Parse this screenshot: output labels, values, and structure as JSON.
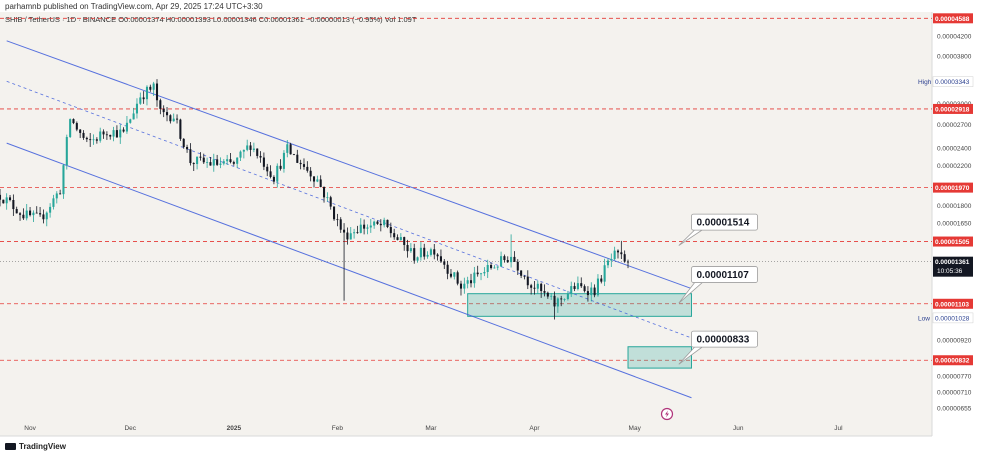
{
  "header": {
    "published": "parhamnb published on TradingView.com, Apr 29, 2025 17:24 UTC+3:30"
  },
  "footer": {
    "brand": "TradingView"
  },
  "colors": {
    "up": "#26a69a",
    "down": "#131722",
    "channel": "#3b5bdb",
    "level": "#e53935",
    "zone": "#26a69a",
    "pane": "#f4f2ee"
  },
  "chart_data": {
    "type": "candlestick",
    "legend": "SHIB / TetherUS · 1D · BINANCE  O0.00001374  H0.00001393  L0.00001346  C0.00001361  −0.00000013 (−0.95%)  Vol 1.09T",
    "symbol": "SHIB / TetherUS",
    "interval": "1D",
    "exchange": "BINANCE",
    "ohlc": {
      "open": 1.374e-05,
      "high": 1.393e-05,
      "low": 1.346e-05,
      "close": 1.361e-05,
      "change": "−0.00000013 (−0.95%)",
      "volume": "1.09T"
    },
    "x_start": "2024-10-23",
    "x_end": "2025-07-29",
    "y_range": [
      6.3e-06,
      5e-06
    ],
    "y_scale": "log",
    "y_ticks": [
      "0.00004200",
      "0.00003800",
      "0.00003000",
      "0.00002700",
      "0.00002400",
      "0.00002200",
      "0.00001800",
      "0.00001650",
      "0.00000920",
      "0.00000770",
      "0.00000710",
      "0.00000655"
    ],
    "x_ticks": [
      {
        "label": "Nov",
        "date": "2024-11-01"
      },
      {
        "label": "Dec",
        "date": "2024-12-01"
      },
      {
        "label": "2025",
        "date": "2025-01-01"
      },
      {
        "label": "Feb",
        "date": "2025-02-01"
      },
      {
        "label": "Mar",
        "date": "2025-03-01"
      },
      {
        "label": "Apr",
        "date": "2025-04-01"
      },
      {
        "label": "May",
        "date": "2025-05-01"
      },
      {
        "label": "Jun",
        "date": "2025-06-01"
      },
      {
        "label": "Jul",
        "date": "2025-07-01"
      }
    ],
    "horizontal_levels": [
      {
        "value": 4.588e-05,
        "label": "0.00004588"
      },
      {
        "value": 2.918e-05,
        "label": "0.00002918"
      },
      {
        "value": 1.97e-05,
        "label": "0.00001970"
      },
      {
        "value": 1.505e-05,
        "label": "0.00001505"
      },
      {
        "value": 1.103e-05,
        "label": "0.00001103"
      },
      {
        "value": 8.32e-06,
        "label": "0.00000832"
      }
    ],
    "high_marker": {
      "name": "High",
      "value": 3.343e-05,
      "label": "0.00003343"
    },
    "low_marker": {
      "name": "Low",
      "value": 1.028e-05,
      "label": "0.00001028"
    },
    "last_price": {
      "value": 1.361e-05,
      "label": "0.00001361",
      "countdown": "10:05:36"
    },
    "channel": {
      "upper": [
        {
          "date": "2024-10-25",
          "value": 4.1e-05
        },
        {
          "date": "2025-05-18",
          "value": 1.19e-05
        }
      ],
      "middle": [
        {
          "date": "2024-10-25",
          "value": 3.35e-05
        },
        {
          "date": "2025-05-18",
          "value": 9.3e-06
        }
      ],
      "lower": [
        {
          "date": "2024-10-25",
          "value": 2.46e-05
        },
        {
          "date": "2025-05-18",
          "value": 6.9e-06
        }
      ]
    },
    "zones": [
      {
        "from": "2025-03-12",
        "to": "2025-05-18",
        "top": 1.16e-05,
        "bottom": 1.036e-05
      },
      {
        "from": "2025-04-29",
        "to": "2025-05-18",
        "top": 8.9e-06,
        "bottom": 8e-06
      }
    ],
    "callouts": [
      {
        "label": "0.00001514",
        "date": "2025-05-18",
        "value": 1.65e-05,
        "anchor_date": "2025-05-16",
        "anchor_value": 1.52e-05
      },
      {
        "label": "0.00001107",
        "date": "2025-05-18",
        "value": 1.27e-05,
        "anchor_date": "2025-05-16",
        "anchor_value": 1.14e-05
      },
      {
        "label": "0.00000833",
        "date": "2025-05-18",
        "value": 9.2e-06,
        "anchor_date": "2025-05-16",
        "anchor_value": 8.4e-06
      }
    ],
    "anchors": [
      {
        "date": "2024-10-23",
        "value": 1.9e-05
      },
      {
        "date": "2024-10-30",
        "value": 1.72e-05
      },
      {
        "date": "2024-11-04",
        "value": 1.68e-05
      },
      {
        "date": "2024-11-10",
        "value": 1.95e-05
      },
      {
        "date": "2024-11-13",
        "value": 2.78e-05
      },
      {
        "date": "2024-11-18",
        "value": 2.45e-05
      },
      {
        "date": "2024-11-24",
        "value": 2.62e-05
      },
      {
        "date": "2024-11-29",
        "value": 2.58e-05
      },
      {
        "date": "2024-12-04",
        "value": 3.12e-05
      },
      {
        "date": "2024-12-08",
        "value": 3.25e-05
      },
      {
        "date": "2024-12-10",
        "value": 2.85e-05
      },
      {
        "date": "2024-12-14",
        "value": 2.82e-05
      },
      {
        "date": "2024-12-19",
        "value": 2.25e-05
      },
      {
        "date": "2024-12-26",
        "value": 2.22e-05
      },
      {
        "date": "2025-01-01",
        "value": 2.21e-05
      },
      {
        "date": "2025-01-06",
        "value": 2.45e-05
      },
      {
        "date": "2025-01-13",
        "value": 2.08e-05
      },
      {
        "date": "2025-01-17",
        "value": 2.38e-05
      },
      {
        "date": "2025-01-26",
        "value": 2.05e-05
      },
      {
        "date": "2025-02-03",
        "value": 1.55e-05
      },
      {
        "date": "2025-02-08",
        "value": 1.62e-05
      },
      {
        "date": "2025-02-15",
        "value": 1.63e-05
      },
      {
        "date": "2025-02-24",
        "value": 1.4e-05
      },
      {
        "date": "2025-03-02",
        "value": 1.45e-05
      },
      {
        "date": "2025-03-10",
        "value": 1.2e-05
      },
      {
        "date": "2025-03-18",
        "value": 1.31e-05
      },
      {
        "date": "2025-03-25",
        "value": 1.4e-05
      },
      {
        "date": "2025-03-30",
        "value": 1.24e-05
      },
      {
        "date": "2025-04-07",
        "value": 1.1e-05
      },
      {
        "date": "2025-04-13",
        "value": 1.2e-05
      },
      {
        "date": "2025-04-19",
        "value": 1.18e-05
      },
      {
        "date": "2025-04-23",
        "value": 1.35e-05
      },
      {
        "date": "2025-04-25",
        "value": 1.4e-05
      },
      {
        "date": "2025-04-29",
        "value": 1.361e-05
      }
    ],
    "wicks": [
      {
        "date": "2025-02-03",
        "low": 1.12e-05
      },
      {
        "date": "2025-03-25",
        "high": 1.56e-05
      },
      {
        "date": "2025-04-07",
        "low": 1.02e-05
      },
      {
        "date": "2025-04-27",
        "high": 1.51e-05
      },
      {
        "date": "2024-12-08",
        "high": 3.34e-05
      }
    ]
  }
}
